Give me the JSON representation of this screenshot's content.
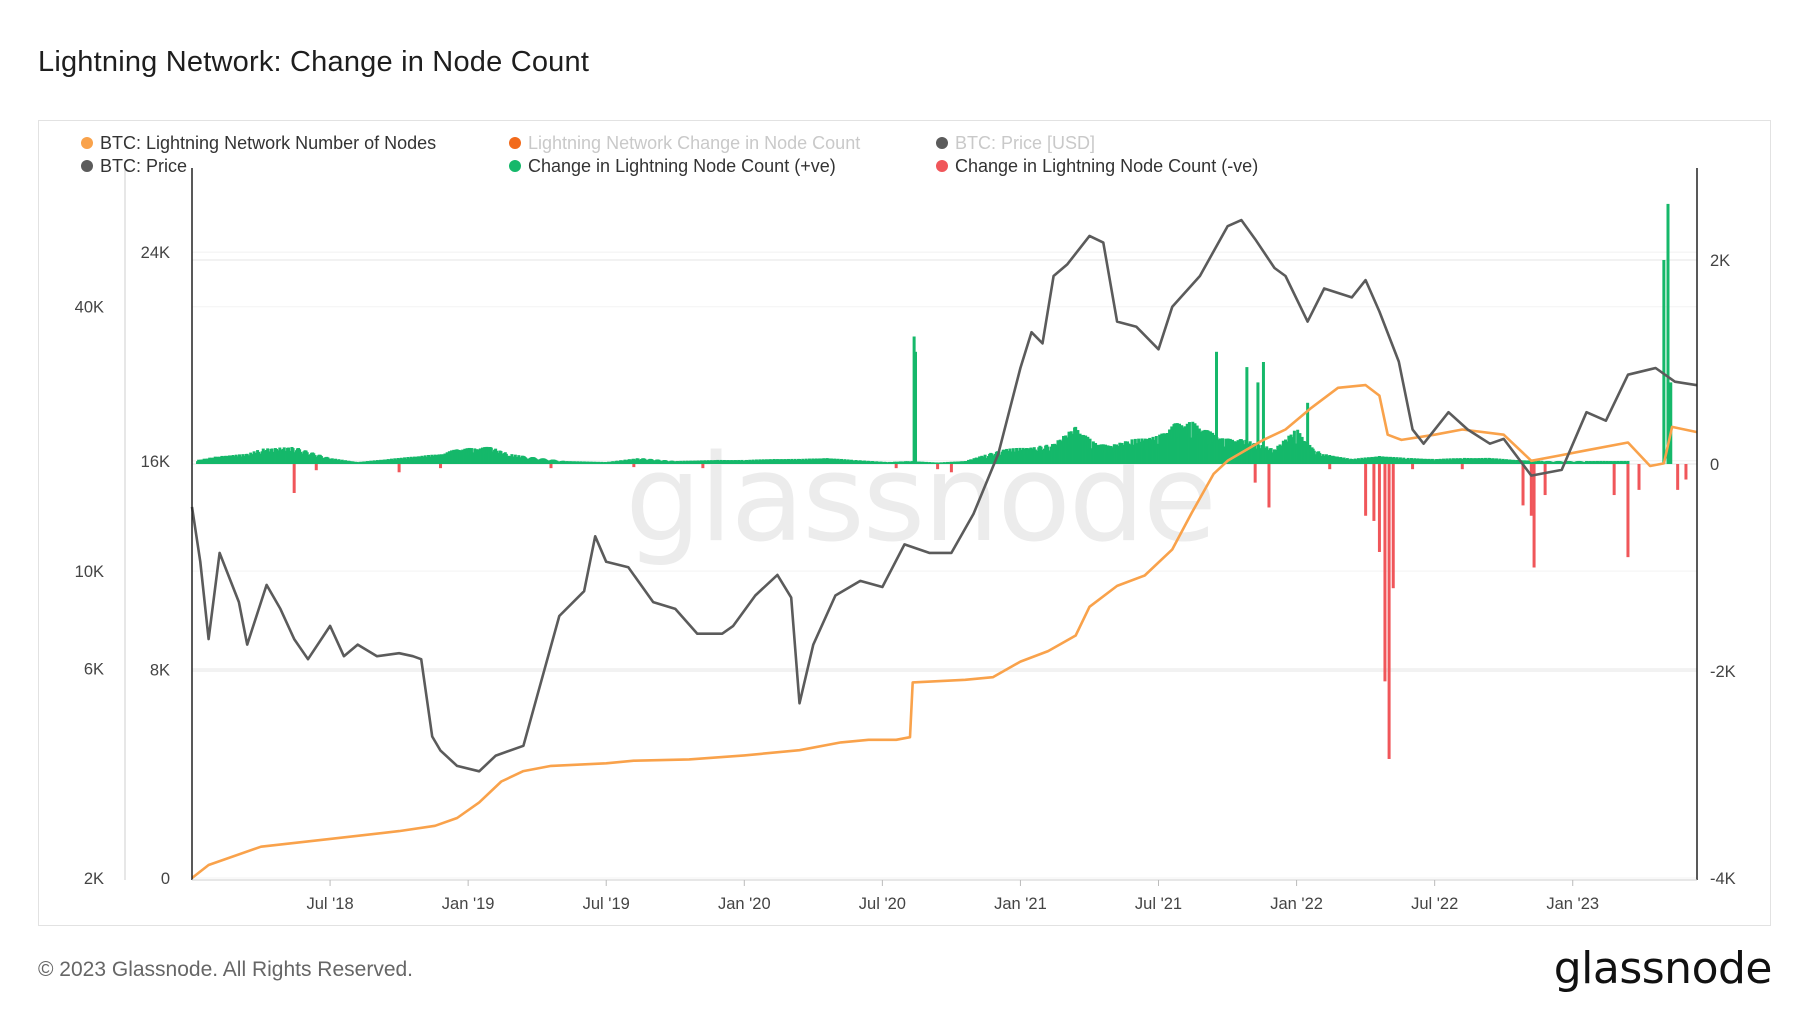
{
  "title": "Lightning Network: Change in Node Count",
  "footer": "© 2023 Glassnode. All Rights Reserved.",
  "brand": "glassnode",
  "watermark": "glassnode",
  "colors": {
    "nodes": "#f9a24b",
    "change": "#f26a1b",
    "price": "#5b5b5b",
    "positive": "#15b86a",
    "negative": "#f0565a",
    "legend_faded": "#c9c9c9",
    "grid": "#e6e6e6"
  },
  "legend": [
    {
      "label": "BTC: Lightning Network Number of Nodes",
      "color": "#f9a24b",
      "faded": false
    },
    {
      "label": "Lightning Network Change in Node Count",
      "color": "#f26a1b",
      "faded": true
    },
    {
      "label": "BTC: Price [USD]",
      "color": "#5b5b5b",
      "faded": true
    },
    {
      "label": "BTC: Price",
      "color": "#5b5b5b",
      "faded": false
    },
    {
      "label": "Change in Lightning Node Count (+ve)",
      "color": "#15b86a",
      "faded": false
    },
    {
      "label": "Change in Lightning Node Count (-ve)",
      "color": "#f0565a",
      "faded": false
    }
  ],
  "chart_data": {
    "type": "line",
    "title": "Lightning Network: Change in Node Count",
    "x_range": [
      2018.0,
      2023.45
    ],
    "x_ticks": [
      {
        "label": "Jul '18",
        "t": 2018.5
      },
      {
        "label": "Jan '19",
        "t": 2019.0
      },
      {
        "label": "Jul '19",
        "t": 2019.5
      },
      {
        "label": "Jan '20",
        "t": 2020.0
      },
      {
        "label": "Jul '20",
        "t": 2020.5
      },
      {
        "label": "Jan '21",
        "t": 2021.0
      },
      {
        "label": "Jul '21",
        "t": 2021.5
      },
      {
        "label": "Jan '22",
        "t": 2022.0
      },
      {
        "label": "Jul '22",
        "t": 2022.5
      },
      {
        "label": "Jan '23",
        "t": 2023.0
      }
    ],
    "axes": {
      "price_log": {
        "position": "far-left",
        "scale": "log",
        "range": [
          2000,
          70000
        ],
        "ticks": [
          {
            "label": "2K",
            "v": 2000
          },
          {
            "label": "6K",
            "v": 6000
          },
          {
            "label": "10K",
            "v": 10000
          },
          {
            "label": "40K",
            "v": 40000
          }
        ]
      },
      "nodes": {
        "position": "left",
        "scale": "linear",
        "range": [
          0,
          26000
        ],
        "ticks": [
          {
            "label": "0",
            "v": 0
          },
          {
            "label": "8K",
            "v": 8000
          },
          {
            "label": "16K",
            "v": 16000
          },
          {
            "label": "24K",
            "v": 24000
          }
        ]
      },
      "change": {
        "position": "right",
        "scale": "linear",
        "range": [
          -4000,
          2500
        ],
        "ticks": [
          {
            "label": "-4K",
            "v": -4000
          },
          {
            "label": "-2K",
            "v": -2000
          },
          {
            "label": "0",
            "v": 0
          },
          {
            "label": "2K",
            "v": 2000
          }
        ]
      }
    },
    "series": [
      {
        "name": "BTC: Lightning Network Number of Nodes",
        "axis": "nodes",
        "style": "line",
        "points": [
          [
            2018.0,
            0
          ],
          [
            2018.06,
            500
          ],
          [
            2018.25,
            1200
          ],
          [
            2018.5,
            1500
          ],
          [
            2018.75,
            1800
          ],
          [
            2018.88,
            2000
          ],
          [
            2018.96,
            2300
          ],
          [
            2019.04,
            2900
          ],
          [
            2019.12,
            3700
          ],
          [
            2019.2,
            4100
          ],
          [
            2019.3,
            4300
          ],
          [
            2019.5,
            4400
          ],
          [
            2019.6,
            4500
          ],
          [
            2019.8,
            4550
          ],
          [
            2020.0,
            4700
          ],
          [
            2020.2,
            4900
          ],
          [
            2020.35,
            5200
          ],
          [
            2020.45,
            5300
          ],
          [
            2020.55,
            5300
          ],
          [
            2020.6,
            5400
          ],
          [
            2020.61,
            7500
          ],
          [
            2020.8,
            7600
          ],
          [
            2020.9,
            7700
          ],
          [
            2021.0,
            8300
          ],
          [
            2021.1,
            8700
          ],
          [
            2021.2,
            9300
          ],
          [
            2021.25,
            10400
          ],
          [
            2021.35,
            11200
          ],
          [
            2021.45,
            11600
          ],
          [
            2021.55,
            12600
          ],
          [
            2021.62,
            14000
          ],
          [
            2021.7,
            15500
          ],
          [
            2021.75,
            16000
          ],
          [
            2021.88,
            16800
          ],
          [
            2021.96,
            17200
          ],
          [
            2022.05,
            18000
          ],
          [
            2022.15,
            18800
          ],
          [
            2022.25,
            18900
          ],
          [
            2022.3,
            18500
          ],
          [
            2022.33,
            17000
          ],
          [
            2022.38,
            16800
          ],
          [
            2022.5,
            17000
          ],
          [
            2022.6,
            17200
          ],
          [
            2022.75,
            17000
          ],
          [
            2022.85,
            16000
          ],
          [
            2022.95,
            16200
          ],
          [
            2023.05,
            16400
          ],
          [
            2023.2,
            16700
          ],
          [
            2023.28,
            15800
          ],
          [
            2023.33,
            15900
          ],
          [
            2023.36,
            17300
          ],
          [
            2023.45,
            17100
          ]
        ]
      },
      {
        "name": "BTC: Price",
        "axis": "price_log",
        "style": "line",
        "points": [
          [
            2018.0,
            14000
          ],
          [
            2018.03,
            10500
          ],
          [
            2018.06,
            7000
          ],
          [
            2018.1,
            11000
          ],
          [
            2018.17,
            8500
          ],
          [
            2018.2,
            6800
          ],
          [
            2018.27,
            9300
          ],
          [
            2018.32,
            8200
          ],
          [
            2018.37,
            7000
          ],
          [
            2018.42,
            6300
          ],
          [
            2018.5,
            7500
          ],
          [
            2018.55,
            6400
          ],
          [
            2018.6,
            6800
          ],
          [
            2018.67,
            6400
          ],
          [
            2018.75,
            6500
          ],
          [
            2018.8,
            6400
          ],
          [
            2018.83,
            6300
          ],
          [
            2018.87,
            4200
          ],
          [
            2018.9,
            3900
          ],
          [
            2018.96,
            3600
          ],
          [
            2019.04,
            3500
          ],
          [
            2019.1,
            3800
          ],
          [
            2019.2,
            4000
          ],
          [
            2019.25,
            5200
          ],
          [
            2019.33,
            7900
          ],
          [
            2019.42,
            9000
          ],
          [
            2019.46,
            12000
          ],
          [
            2019.5,
            10500
          ],
          [
            2019.58,
            10200
          ],
          [
            2019.67,
            8500
          ],
          [
            2019.75,
            8200
          ],
          [
            2019.83,
            7200
          ],
          [
            2019.92,
            7200
          ],
          [
            2019.96,
            7500
          ],
          [
            2020.04,
            8800
          ],
          [
            2020.12,
            9800
          ],
          [
            2020.17,
            8700
          ],
          [
            2020.2,
            5000
          ],
          [
            2020.25,
            6800
          ],
          [
            2020.33,
            8800
          ],
          [
            2020.42,
            9500
          ],
          [
            2020.5,
            9200
          ],
          [
            2020.58,
            11500
          ],
          [
            2020.67,
            11000
          ],
          [
            2020.75,
            11000
          ],
          [
            2020.83,
            13500
          ],
          [
            2020.92,
            18500
          ],
          [
            2021.0,
            29000
          ],
          [
            2021.04,
            35000
          ],
          [
            2021.08,
            33000
          ],
          [
            2021.12,
            47000
          ],
          [
            2021.17,
            50000
          ],
          [
            2021.25,
            58000
          ],
          [
            2021.3,
            56000
          ],
          [
            2021.35,
            37000
          ],
          [
            2021.42,
            36000
          ],
          [
            2021.5,
            32000
          ],
          [
            2021.55,
            40000
          ],
          [
            2021.65,
            47000
          ],
          [
            2021.75,
            61000
          ],
          [
            2021.8,
            63000
          ],
          [
            2021.85,
            57000
          ],
          [
            2021.92,
            49000
          ],
          [
            2021.96,
            47000
          ],
          [
            2022.04,
            37000
          ],
          [
            2022.1,
            44000
          ],
          [
            2022.2,
            42000
          ],
          [
            2022.25,
            46000
          ],
          [
            2022.3,
            39000
          ],
          [
            2022.37,
            30000
          ],
          [
            2022.42,
            21000
          ],
          [
            2022.46,
            19500
          ],
          [
            2022.55,
            23000
          ],
          [
            2022.62,
            21000
          ],
          [
            2022.7,
            19500
          ],
          [
            2022.75,
            20000
          ],
          [
            2022.85,
            16500
          ],
          [
            2022.96,
            17000
          ],
          [
            2023.05,
            23000
          ],
          [
            2023.12,
            22000
          ],
          [
            2023.2,
            28000
          ],
          [
            2023.3,
            29000
          ],
          [
            2023.37,
            27000
          ],
          [
            2023.45,
            26500
          ]
        ]
      },
      {
        "name": "Change in Lightning Node Count (+ve)",
        "axis": "change",
        "style": "bars",
        "points": [
          [
            2018.02,
            40
          ],
          [
            2018.1,
            80
          ],
          [
            2018.2,
            100
          ],
          [
            2018.25,
            150
          ],
          [
            2018.37,
            170
          ],
          [
            2018.5,
            60
          ],
          [
            2018.6,
            20
          ],
          [
            2018.75,
            60
          ],
          [
            2018.9,
            100
          ],
          [
            2018.96,
            150
          ],
          [
            2019.02,
            160
          ],
          [
            2019.08,
            170
          ],
          [
            2019.15,
            100
          ],
          [
            2019.2,
            80
          ],
          [
            2019.35,
            30
          ],
          [
            2019.5,
            20
          ],
          [
            2019.62,
            60
          ],
          [
            2019.75,
            30
          ],
          [
            2019.9,
            40
          ],
          [
            2020.0,
            40
          ],
          [
            2020.1,
            50
          ],
          [
            2020.2,
            50
          ],
          [
            2020.3,
            60
          ],
          [
            2020.4,
            40
          ],
          [
            2020.52,
            20
          ],
          [
            2020.6,
            30
          ],
          [
            2020.615,
            1250
          ],
          [
            2020.62,
            1100
          ],
          [
            2020.7,
            15
          ],
          [
            2020.8,
            30
          ],
          [
            2020.88,
            100
          ],
          [
            2020.95,
            150
          ],
          [
            2021.05,
            170
          ],
          [
            2021.12,
            200
          ],
          [
            2021.2,
            370
          ],
          [
            2021.26,
            230
          ],
          [
            2021.32,
            180
          ],
          [
            2021.4,
            240
          ],
          [
            2021.5,
            280
          ],
          [
            2021.56,
            400
          ],
          [
            2021.62,
            420
          ],
          [
            2021.68,
            330
          ],
          [
            2021.71,
            1100
          ],
          [
            2021.74,
            250
          ],
          [
            2021.8,
            250
          ],
          [
            2021.82,
            950
          ],
          [
            2021.86,
            800
          ],
          [
            2021.88,
            1000
          ],
          [
            2021.92,
            150
          ],
          [
            2022.0,
            350
          ],
          [
            2022.04,
            600
          ],
          [
            2022.06,
            150
          ],
          [
            2022.1,
            100
          ],
          [
            2022.2,
            50
          ],
          [
            2022.3,
            80
          ],
          [
            2022.4,
            60
          ],
          [
            2022.5,
            50
          ],
          [
            2022.6,
            60
          ],
          [
            2022.7,
            60
          ],
          [
            2022.8,
            40
          ],
          [
            2022.9,
            30
          ],
          [
            2023.05,
            30
          ],
          [
            2023.2,
            30
          ],
          [
            2023.33,
            2000
          ],
          [
            2023.345,
            2550
          ],
          [
            2023.355,
            800
          ]
        ]
      },
      {
        "name": "Change in Lightning Node Count (-ve)",
        "axis": "change",
        "style": "bars",
        "points": [
          [
            2018.37,
            -280
          ],
          [
            2018.45,
            -60
          ],
          [
            2018.75,
            -80
          ],
          [
            2018.9,
            -40
          ],
          [
            2019.3,
            -40
          ],
          [
            2019.6,
            -30
          ],
          [
            2019.85,
            -40
          ],
          [
            2020.55,
            -40
          ],
          [
            2020.7,
            -50
          ],
          [
            2020.75,
            -80
          ],
          [
            2021.85,
            -180
          ],
          [
            2021.9,
            -420
          ],
          [
            2022.12,
            -50
          ],
          [
            2022.25,
            -500
          ],
          [
            2022.28,
            -550
          ],
          [
            2022.3,
            -850
          ],
          [
            2022.32,
            -2100
          ],
          [
            2022.335,
            -2850
          ],
          [
            2022.35,
            -1200
          ],
          [
            2022.42,
            -50
          ],
          [
            2022.6,
            -50
          ],
          [
            2022.82,
            -400
          ],
          [
            2022.85,
            -500
          ],
          [
            2022.86,
            -1000
          ],
          [
            2022.9,
            -300
          ],
          [
            2023.15,
            -300
          ],
          [
            2023.2,
            -900
          ],
          [
            2023.24,
            -250
          ],
          [
            2023.38,
            -250
          ],
          [
            2023.41,
            -150
          ]
        ]
      }
    ]
  }
}
